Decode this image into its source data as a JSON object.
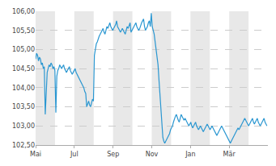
{
  "chart_data": {
    "type": "line",
    "color": "#2b97d1",
    "grid": true,
    "xlim": [
      0,
      241
    ],
    "xticks": [
      {
        "value": 0,
        "label": "Mai"
      },
      {
        "value": 40.166666666666664,
        "label": "Jul"
      },
      {
        "value": 80.33333333333333,
        "label": "Sep"
      },
      {
        "value": 120.5,
        "label": "Nov"
      },
      {
        "value": 160.66666666666666,
        "label": "Jan"
      },
      {
        "value": 200.83333333333334,
        "label": "Mär"
      }
    ],
    "ylim": [
      102.5,
      106.0
    ],
    "yticks": [
      {
        "value": 102.5,
        "label": "102,50"
      },
      {
        "value": 103.0,
        "label": "103,00"
      },
      {
        "value": 103.5,
        "label": "103,50"
      },
      {
        "value": 104.0,
        "label": "104,00"
      },
      {
        "value": 104.5,
        "label": "104,50"
      },
      {
        "value": 105.0,
        "label": "105,00"
      },
      {
        "value": 105.5,
        "label": "105,50"
      },
      {
        "value": 106.0,
        "label": "106,00"
      }
    ],
    "values": [
      104.75,
      104.9,
      104.85,
      104.7,
      104.8,
      104.75,
      104.6,
      104.65,
      104.5,
      104.55,
      103.3,
      104.1,
      104.4,
      104.5,
      104.6,
      104.55,
      104.65,
      104.6,
      104.5,
      104.55,
      104.45,
      103.35,
      104.3,
      104.45,
      104.5,
      104.6,
      104.55,
      104.5,
      104.55,
      104.6,
      104.5,
      104.45,
      104.4,
      104.45,
      104.5,
      104.55,
      104.45,
      104.4,
      104.35,
      104.4,
      104.45,
      104.5,
      104.4,
      104.35,
      104.3,
      104.25,
      104.2,
      104.15,
      104.1,
      104.05,
      104.0,
      103.9,
      103.85,
      103.5,
      103.6,
      103.65,
      103.55,
      103.5,
      103.6,
      103.7,
      103.65,
      104.85,
      105.0,
      105.15,
      105.2,
      105.3,
      105.35,
      105.4,
      105.45,
      105.5,
      105.55,
      105.45,
      105.4,
      105.5,
      105.6,
      105.55,
      105.65,
      105.7,
      105.6,
      105.55,
      105.5,
      105.55,
      105.6,
      105.65,
      105.75,
      105.6,
      105.55,
      105.5,
      105.45,
      105.5,
      105.55,
      105.5,
      105.45,
      105.4,
      105.5,
      105.6,
      105.55,
      105.65,
      105.7,
      105.45,
      105.5,
      105.55,
      105.6,
      105.65,
      105.7,
      105.6,
      105.55,
      105.5,
      105.55,
      105.65,
      105.7,
      105.75,
      105.8,
      105.6,
      105.5,
      105.55,
      105.6,
      105.7,
      105.75,
      105.6,
      105.95,
      105.6,
      105.5,
      105.4,
      105.2,
      105.0,
      104.8,
      104.6,
      104.2,
      103.8,
      103.4,
      103.0,
      102.7,
      102.6,
      102.55,
      102.6,
      102.65,
      102.7,
      102.75,
      102.8,
      102.9,
      102.95,
      103.0,
      103.1,
      103.2,
      103.25,
      103.3,
      103.2,
      103.15,
      103.1,
      103.2,
      103.3,
      103.25,
      103.2,
      103.15,
      103.2,
      103.15,
      103.1,
      103.05,
      103.0,
      103.05,
      103.1,
      103.0,
      102.95,
      103.0,
      103.05,
      103.1,
      103.0,
      102.95,
      102.9,
      102.95,
      103.0,
      102.95,
      102.9,
      102.85,
      102.9,
      102.95,
      103.0,
      103.05,
      103.0,
      102.95,
      102.9,
      102.95,
      103.0,
      102.95,
      102.9,
      102.85,
      102.8,
      102.75,
      102.8,
      102.85,
      102.9,
      102.95,
      103.0,
      102.95,
      102.9,
      102.85,
      102.8,
      102.75,
      102.7,
      102.65,
      102.6,
      102.55,
      102.6,
      102.65,
      102.7,
      102.75,
      102.8,
      102.85,
      102.9,
      102.95,
      102.9,
      102.95,
      103.0,
      103.05,
      103.1,
      103.15,
      103.2,
      103.15,
      103.1,
      103.05,
      103.0,
      103.05,
      103.1,
      103.15,
      103.2,
      103.1,
      103.05,
      103.1,
      103.15,
      103.2,
      103.1,
      103.05,
      103.0,
      103.05,
      103.1,
      103.15,
      103.2,
      103.1,
      103.05,
      103.0
    ]
  }
}
